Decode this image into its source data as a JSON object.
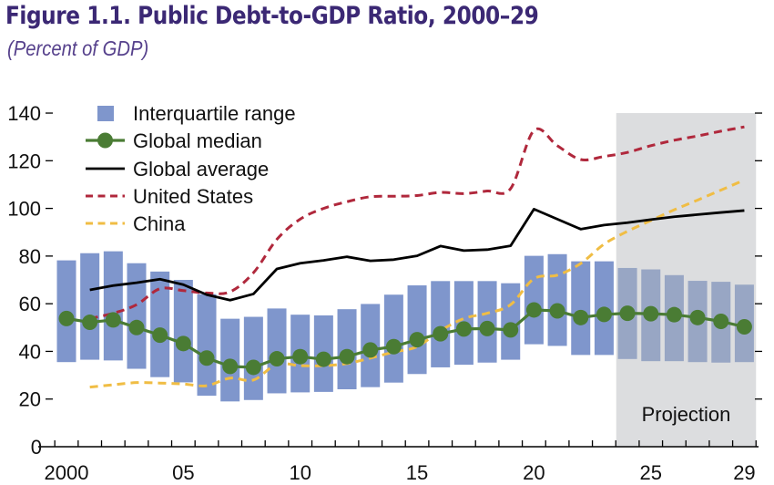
{
  "header": {
    "title": "Figure 1.1. Public Debt-to-GDP Ratio, 2000–29",
    "subtitle": "(Percent of GDP)"
  },
  "colors": {
    "iqr": "#7f96cc",
    "iqr_projection": "#98a6c4",
    "median": "#4a7c34",
    "average": "#000000",
    "us": "#b0283c",
    "china": "#f0bd44",
    "projection_shade": "#dcdddf",
    "title": "#3b2874"
  },
  "chart_data": {
    "type": "line",
    "title": "Figure 1.1. Public Debt-to-GDP Ratio, 2000–29",
    "subtitle": "(Percent of GDP)",
    "xlabel": "",
    "ylabel": "Percent of GDP",
    "ylim": [
      0,
      140
    ],
    "yticks": [
      0,
      20,
      40,
      60,
      80,
      100,
      120,
      140
    ],
    "xlim": [
      2000,
      2029
    ],
    "xtick_labels": [
      {
        "year": 2000,
        "label": "2000"
      },
      {
        "year": 2005,
        "label": "05"
      },
      {
        "year": 2010,
        "label": "10"
      },
      {
        "year": 2015,
        "label": "15"
      },
      {
        "year": 2020,
        "label": "20"
      },
      {
        "year": 2025,
        "label": "25"
      },
      {
        "year": 2029,
        "label": "29"
      }
    ],
    "grid": false,
    "legend_position": "top-left",
    "projection": {
      "label": "Projection",
      "start_year": 2024,
      "end_year": 2029
    },
    "x": [
      2000,
      2001,
      2002,
      2003,
      2004,
      2005,
      2006,
      2007,
      2008,
      2009,
      2010,
      2011,
      2012,
      2013,
      2014,
      2015,
      2016,
      2017,
      2018,
      2019,
      2020,
      2021,
      2022,
      2023,
      2024,
      2025,
      2026,
      2027,
      2028,
      2029
    ],
    "iqr": {
      "name": "Interquartile range",
      "low": [
        35.5,
        36.5,
        36.2,
        32.7,
        29.2,
        27.0,
        21.4,
        19.0,
        19.6,
        22.4,
        22.8,
        23.0,
        24.1,
        25.0,
        26.9,
        30.5,
        33.3,
        34.4,
        35.3,
        36.5,
        43.0,
        42.3,
        38.5,
        38.5,
        36.8,
        35.9,
        35.9,
        35.5,
        35.3,
        35.5
      ],
      "high": [
        78.2,
        81.2,
        82.0,
        77.0,
        73.5,
        70.0,
        64.0,
        53.7,
        54.5,
        58.0,
        55.4,
        55.1,
        57.7,
        59.9,
        63.8,
        67.7,
        69.5,
        69.5,
        69.5,
        68.6,
        80.1,
        80.8,
        77.8,
        77.8,
        75.0,
        74.4,
        72.0,
        69.6,
        69.2,
        68.0
      ]
    },
    "series": [
      {
        "name": "Global median",
        "key": "median",
        "values": [
          53.8,
          52.2,
          53.2,
          50.0,
          46.8,
          43.3,
          37.2,
          33.7,
          33.3,
          36.9,
          37.8,
          36.7,
          37.8,
          40.6,
          42.0,
          44.9,
          47.4,
          49.4,
          49.6,
          49.0,
          57.4,
          57.0,
          54.2,
          55.5,
          56.0,
          55.8,
          55.4,
          54.2,
          52.6,
          50.3
        ]
      },
      {
        "name": "Global average",
        "key": "average",
        "values": [
          null,
          65.8,
          67.6,
          68.8,
          70.3,
          68.0,
          63.8,
          61.5,
          64.1,
          74.6,
          77.0,
          78.2,
          79.7,
          78.0,
          78.5,
          80.1,
          84.2,
          82.3,
          82.7,
          84.3,
          99.7,
          95.5,
          91.3,
          93.0,
          94.0,
          95.3,
          96.5,
          97.4,
          98.3,
          99.1
        ]
      },
      {
        "name": "United States",
        "key": "us",
        "values": [
          null,
          53.8,
          56.0,
          59.6,
          66.3,
          65.5,
          64.5,
          65.0,
          73.0,
          87.0,
          95.5,
          100.0,
          102.8,
          104.9,
          105.1,
          105.4,
          106.7,
          106.2,
          107.3,
          108.3,
          132.7,
          126.3,
          120.5,
          121.8,
          123.5,
          126.3,
          128.6,
          130.4,
          132.4,
          134.2
        ]
      },
      {
        "name": "China",
        "key": "china",
        "values": [
          null,
          25.0,
          26.0,
          26.9,
          26.7,
          26.3,
          25.6,
          28.8,
          28.0,
          34.6,
          34.0,
          34.0,
          34.9,
          37.2,
          39.7,
          42.0,
          48.7,
          53.8,
          56.0,
          59.6,
          70.5,
          72.0,
          76.9,
          85.0,
          90.4,
          94.9,
          99.4,
          103.5,
          107.7,
          111.9
        ]
      }
    ],
    "legend": [
      {
        "key": "iqr",
        "label": "Interquartile range"
      },
      {
        "key": "median",
        "label": "Global median"
      },
      {
        "key": "average",
        "label": "Global average"
      },
      {
        "key": "us",
        "label": "United States"
      },
      {
        "key": "china",
        "label": "China"
      }
    ]
  }
}
